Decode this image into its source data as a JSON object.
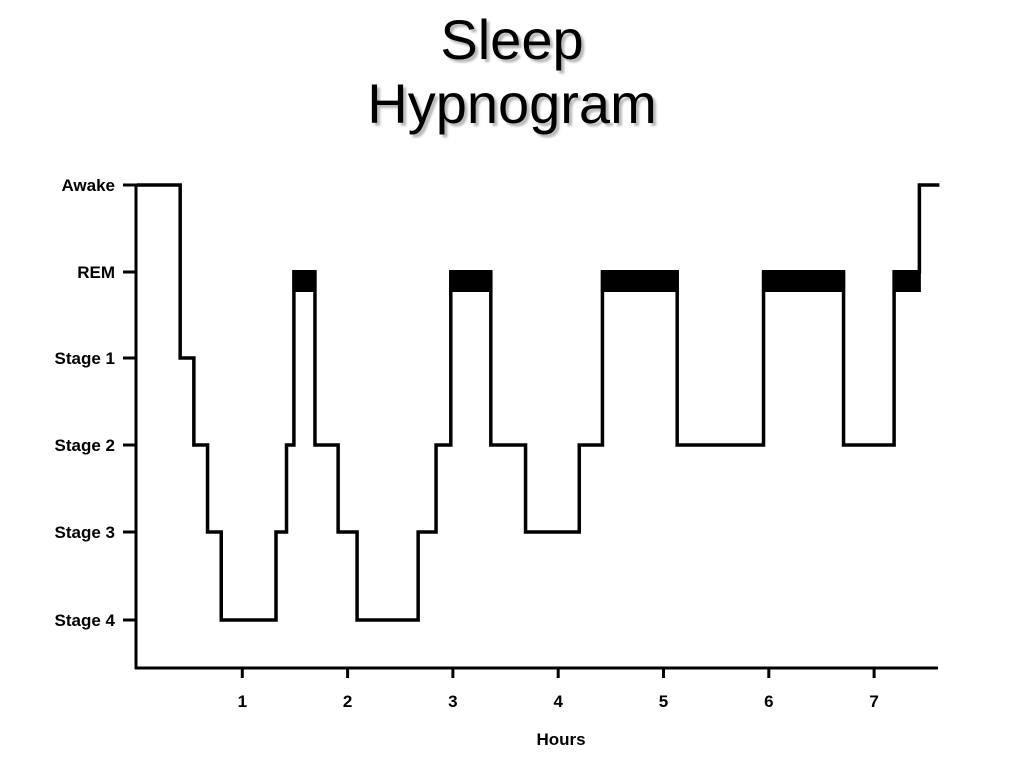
{
  "title": {
    "line1": "Sleep",
    "line2": "Hypnogram"
  },
  "chart_data": {
    "type": "line",
    "title": "Sleep Hypnogram",
    "xlabel": "Hours",
    "ylabel": "",
    "x_ticks": [
      1,
      2,
      3,
      4,
      5,
      6,
      7
    ],
    "xlim": [
      0,
      7.6
    ],
    "y_categories": [
      "Awake",
      "REM",
      "Stage 1",
      "Stage 2",
      "Stage 3",
      "Stage 4"
    ],
    "grid": false,
    "legend": null,
    "step": true,
    "rem_marked_as_filled_bar": true,
    "segments": [
      {
        "stage": "Awake",
        "start": 0.0,
        "end": 0.41
      },
      {
        "stage": "Stage 1",
        "start": 0.41,
        "end": 0.54
      },
      {
        "stage": "Stage 2",
        "start": 0.54,
        "end": 0.67
      },
      {
        "stage": "Stage 3",
        "start": 0.67,
        "end": 0.8
      },
      {
        "stage": "Stage 4",
        "start": 0.8,
        "end": 1.32
      },
      {
        "stage": "Stage 3",
        "start": 1.32,
        "end": 1.42
      },
      {
        "stage": "Stage 2",
        "start": 1.42,
        "end": 1.49
      },
      {
        "stage": "REM",
        "start": 1.49,
        "end": 1.69
      },
      {
        "stage": "Stage 2",
        "start": 1.69,
        "end": 1.91
      },
      {
        "stage": "Stage 3",
        "start": 1.91,
        "end": 2.09
      },
      {
        "stage": "Stage 4",
        "start": 2.09,
        "end": 2.67
      },
      {
        "stage": "Stage 3",
        "start": 2.67,
        "end": 2.84
      },
      {
        "stage": "Stage 2",
        "start": 2.84,
        "end": 2.98
      },
      {
        "stage": "REM",
        "start": 2.98,
        "end": 3.36
      },
      {
        "stage": "Stage 2",
        "start": 3.36,
        "end": 3.69
      },
      {
        "stage": "Stage 3",
        "start": 3.69,
        "end": 4.2
      },
      {
        "stage": "Stage 2",
        "start": 4.2,
        "end": 4.42
      },
      {
        "stage": "REM",
        "start": 4.42,
        "end": 5.13
      },
      {
        "stage": "Stage 2",
        "start": 5.13,
        "end": 5.95
      },
      {
        "stage": "REM",
        "start": 5.95,
        "end": 6.71
      },
      {
        "stage": "Stage 2",
        "start": 6.71,
        "end": 7.19
      },
      {
        "stage": "REM",
        "start": 7.19,
        "end": 7.43
      },
      {
        "stage": "Awake",
        "start": 7.43,
        "end": 7.62
      }
    ]
  }
}
